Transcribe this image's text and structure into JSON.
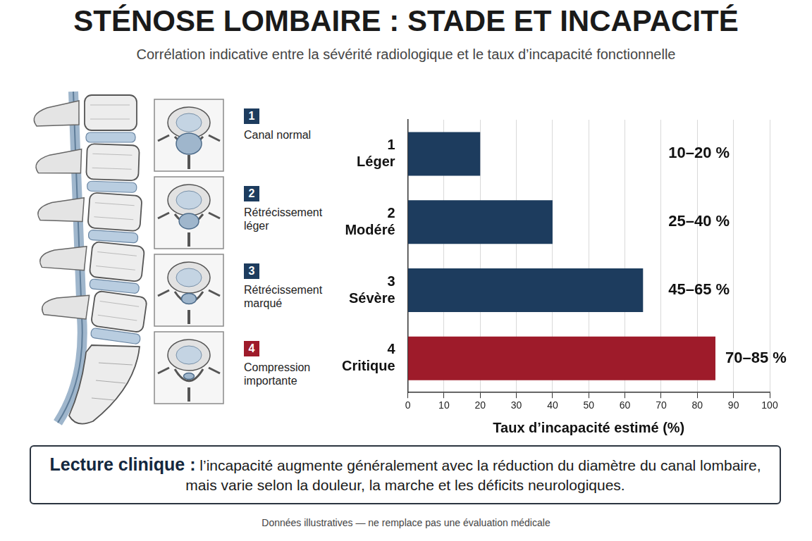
{
  "title": "STÉNOSE LOMBAIRE : STADE ET INCAPACITÉ",
  "subtitle": "Corrélation indicative entre la sévérité radiologique et le taux d’incapacité fonctionnelle",
  "stages": [
    {
      "number": 1,
      "label": "Canal normal"
    },
    {
      "number": 2,
      "label": "Rétrécissement léger"
    },
    {
      "number": 3,
      "label": "Rétrécissement marqué"
    },
    {
      "number": 4,
      "label": "Compression importante"
    }
  ],
  "chart_data": {
    "type": "bar",
    "orientation": "horizontal",
    "stage_numbers": [
      1,
      2,
      3,
      4
    ],
    "categories": [
      "Léger",
      "Modéré",
      "Sévère",
      "Critique"
    ],
    "values": [
      20,
      40,
      65,
      85
    ],
    "value_labels": [
      "10–20 %",
      "25–40 %",
      "45–65 %",
      "70–85 %"
    ],
    "colors": [
      "#1d3c5e",
      "#1d3c5e",
      "#1d3c5e",
      "#9e1b2a"
    ],
    "xlim": [
      0,
      100
    ],
    "xticks": [
      0,
      10,
      20,
      30,
      40,
      50,
      60,
      70,
      80,
      90,
      100
    ],
    "xlabel": "Taux d’incapacité estimé (%)",
    "grid": true,
    "data_labels": true
  },
  "note": {
    "title": "Lecture clinique :",
    "text": "l’incapacité augmente généralement avec la réduction du diamètre du canal lombaire, mais varie selon la douleur, la marche et les déficits neurologiques."
  },
  "footer": "Données illustratives — ne remplace pas une évaluation médicale"
}
